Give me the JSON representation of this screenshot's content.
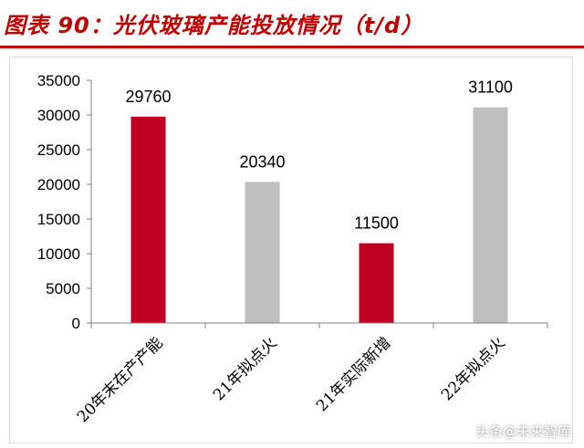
{
  "header": {
    "title": "图表 90：光伏玻璃产能投放情况（t/d）"
  },
  "watermark": "头条@未来智库",
  "colors": {
    "title": "#c00000",
    "highlight_bar": "#c00020",
    "normal_bar": "#bfbfbf",
    "axis": "#808080"
  },
  "chart_data": {
    "type": "bar",
    "title": "光伏玻璃产能投放情况（t/d）",
    "xlabel": "",
    "ylabel": "",
    "categories": [
      "20年末在产产能",
      "21年拟点火",
      "21年实际新增",
      "22年拟点火"
    ],
    "values": [
      29760,
      20340,
      11500,
      31100
    ],
    "bar_colors": [
      "#c00020",
      "#bfbfbf",
      "#c00020",
      "#bfbfbf"
    ],
    "data_labels": [
      "29760",
      "20340",
      "11500",
      "31100"
    ],
    "ylim": [
      0,
      35000
    ],
    "yticks": [
      0,
      5000,
      10000,
      15000,
      20000,
      25000,
      30000,
      35000
    ],
    "grid": false,
    "legend": "none"
  }
}
